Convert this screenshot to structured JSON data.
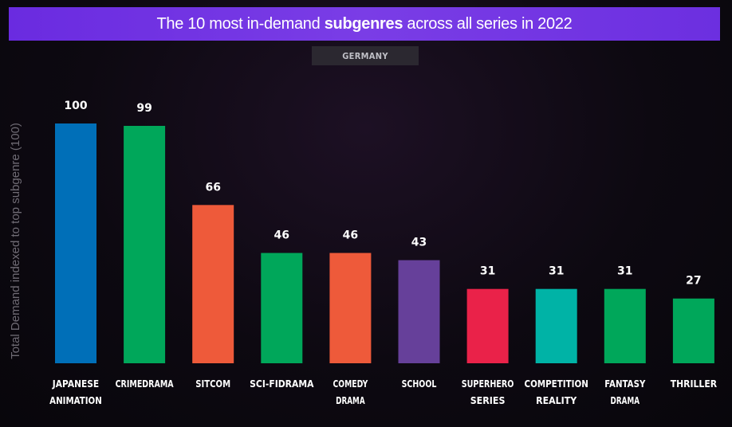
{
  "title": {
    "pre": "The 10 most in-demand ",
    "bold": "subgenres",
    "post": " across all series in 2022"
  },
  "region_label": "GERMANY",
  "chart_data": {
    "type": "bar",
    "ylabel": "Total Demand indexed to top subgenre (100)",
    "xlabel": "",
    "ylim": [
      0,
      100
    ],
    "grid": false,
    "categories": [
      [
        "JAPANESE",
        "ANIMATION"
      ],
      [
        "CRIMEDRAMA"
      ],
      [
        "SITCOM"
      ],
      [
        "SCI-FIDRAMA"
      ],
      [
        "COMEDY",
        "DRAMA"
      ],
      [
        "SCHOOL"
      ],
      [
        "SUPERHERO",
        "SERIES"
      ],
      [
        "COMPETITION",
        "REALITY"
      ],
      [
        "FANTASY",
        "DRAMA"
      ],
      [
        "THRILLER"
      ]
    ],
    "values": [
      100,
      99,
      66,
      46,
      46,
      43,
      31,
      31,
      31,
      27
    ],
    "colors": [
      "#006fb8",
      "#00a75a",
      "#ee5a3a",
      "#00a75a",
      "#ee5a3a",
      "#66409a",
      "#ea2249",
      "#00b3a6",
      "#00a75a",
      "#00a75a"
    ],
    "label_color": "#ffffff"
  }
}
